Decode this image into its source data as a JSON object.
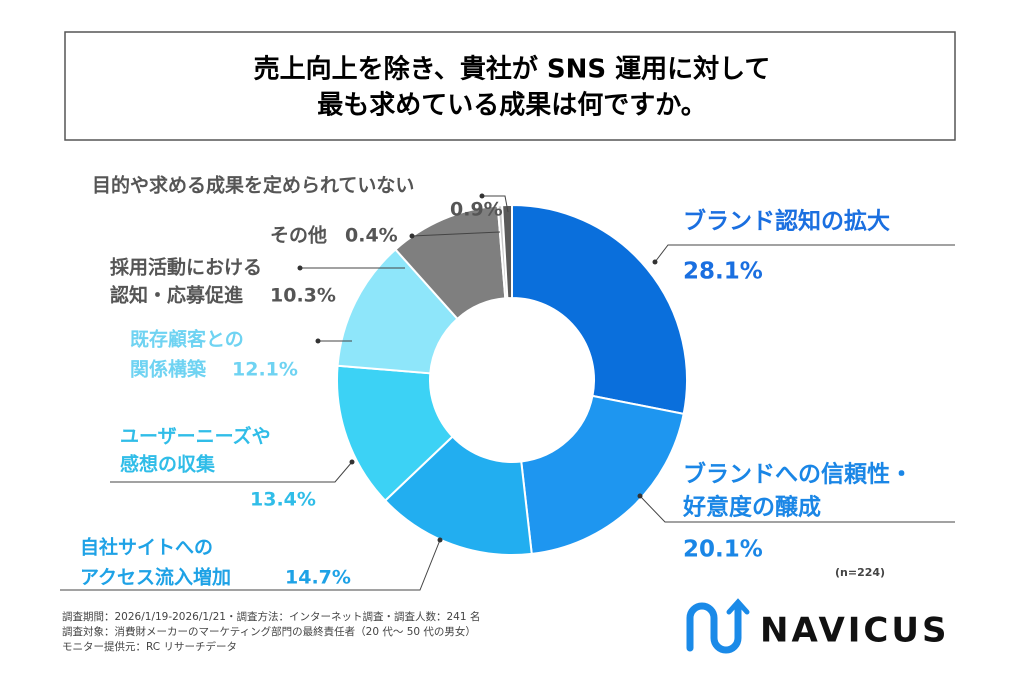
{
  "chart_data": {
    "type": "donut",
    "title": [
      "売上向上を除き、貴社が SNS 運用に対して",
      "最も求めている成果は何ですか。"
    ],
    "categories": [
      [
        "ブランド認知の拡大"
      ],
      [
        "ブランドへの信頼性・",
        "好意度の醸成"
      ],
      [
        "自社サイトへの",
        "アクセス流入増加"
      ],
      [
        "ユーザーニーズや",
        "感想の収集"
      ],
      [
        "既存顧客との",
        "関係構築"
      ],
      [
        "採用活動における",
        "認知・応募促進"
      ],
      [
        "その他"
      ],
      [
        "目的や求める成果を定められていない"
      ]
    ],
    "values": [
      28.1,
      20.1,
      14.7,
      13.4,
      12.1,
      10.3,
      0.4,
      0.9
    ],
    "value_labels": [
      "28.1%",
      "20.1%",
      "14.7%",
      "13.4%",
      "12.1%",
      "10.3%",
      "0.4%",
      "0.9%"
    ],
    "colors": [
      "#0a6fdc",
      "#1e96f0",
      "#22aef0",
      "#3cd2f5",
      "#8ee6fa",
      "#7f7f7f",
      "#c8c8c8",
      "#595959"
    ],
    "note": "(n=224)"
  },
  "footer": [
    "調査期間：2026/1/19-2026/1/21・調査方法：インターネット調査・調査人数：241 名",
    "調査対象：消費財メーカーのマーケティング部門の最終責任者（20 代〜 50 代の男女）",
    "モニター提供元：RC リサーチデータ"
  ],
  "logo": "NAVICUS"
}
